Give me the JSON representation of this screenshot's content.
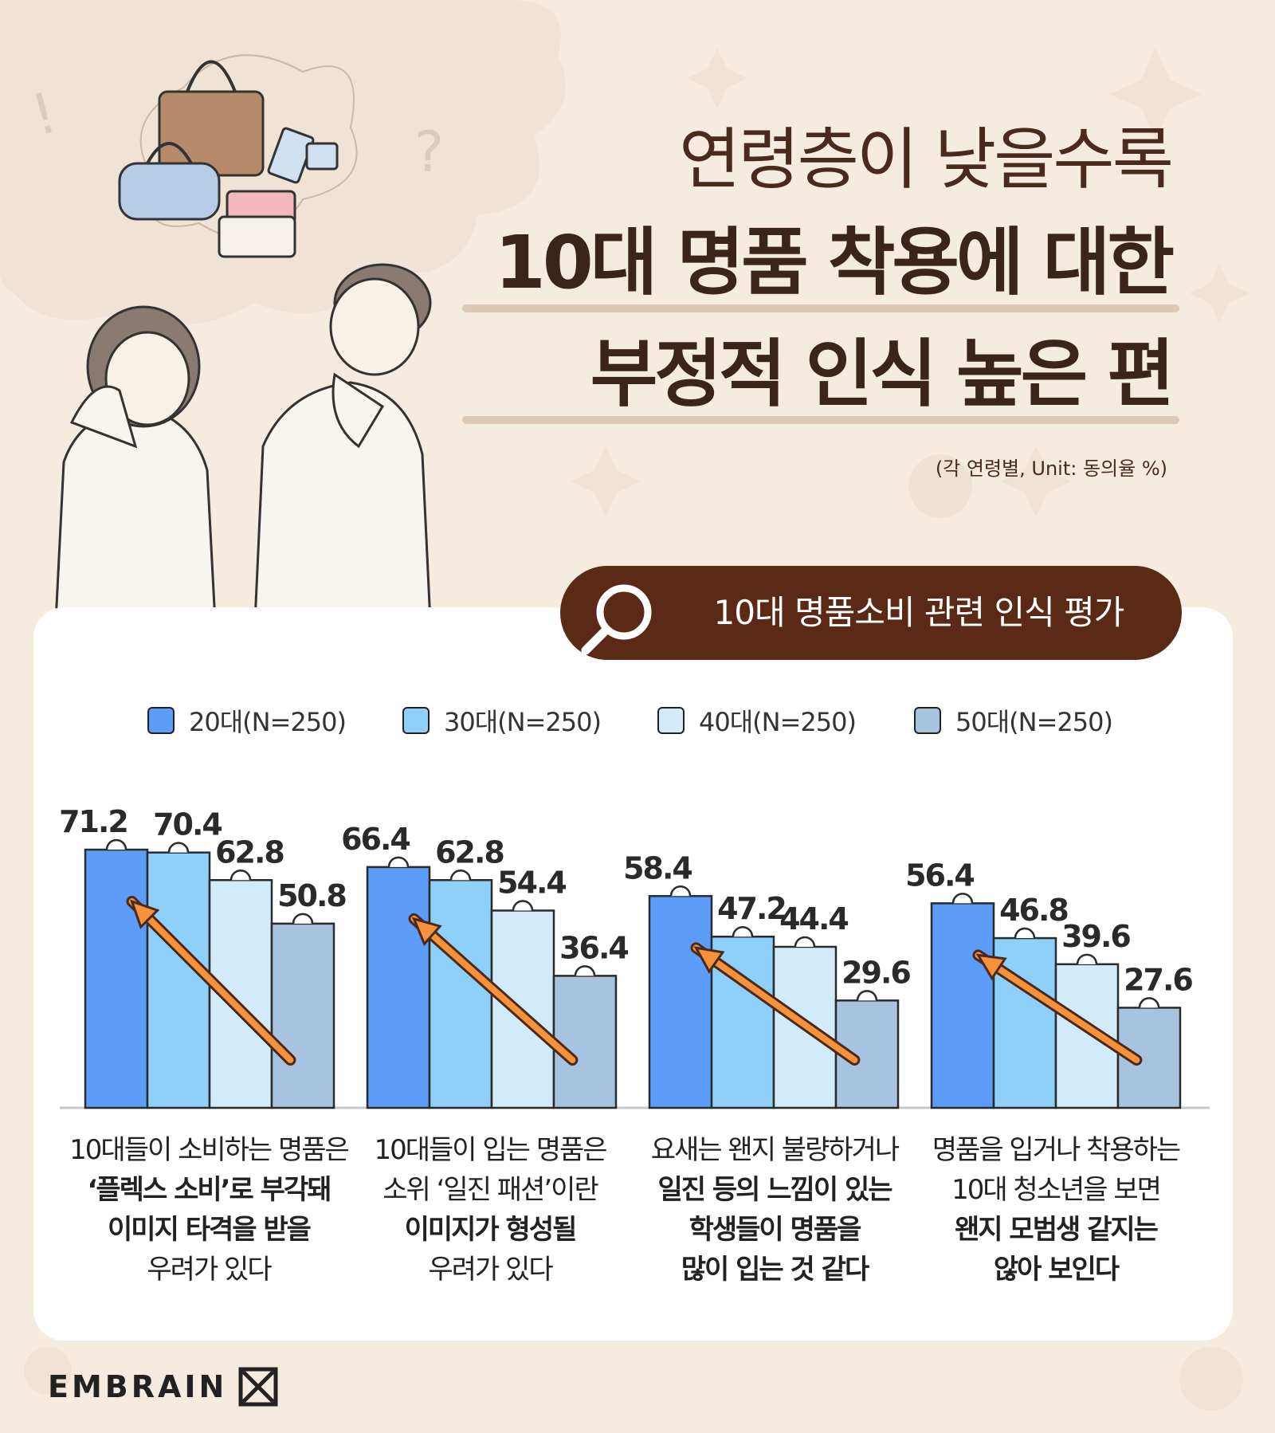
{
  "title": {
    "line1": "연령층이 낮을수록",
    "line2": "10대 명품 착용에 대한",
    "line3": "부정적 인식 높은 편"
  },
  "subtitle": "(각 연령별, Unit: 동의율 %)",
  "section_label": "10대 명품소비 관련 인식 평가",
  "brand": "EMBRAIN",
  "colors": {
    "bg": "#f5ebdf",
    "brown": "#5a2a17",
    "arrow": "#f7923a",
    "s20": "#5b9df9",
    "s30": "#8fd0fb",
    "s40": "#d2ebfb",
    "s50": "#a7c3e0"
  },
  "chart_data": {
    "type": "bar",
    "title": "10대 명품소비 관련 인식 평가",
    "unit": "동의율 %",
    "categories": [
      [
        "10대들이 소비하는 명품은",
        "‘플렉스 소비’로 부각돼",
        "이미지 타격을 받을",
        "우려가 있다"
      ],
      [
        "10대들이 입는 명품은",
        "소위 ‘일진 패션’이란",
        "이미지가 형성될",
        "우려가 있다"
      ],
      [
        "요새는 왠지 불량하거나",
        "일진 등의 느낌이 있는",
        "학생들이 명품을",
        "많이 입는 것 같다"
      ],
      [
        "명품을 입거나 착용하는",
        "10대 청소년을 보면",
        "왠지 모범생 같지는",
        "않아 보인다"
      ]
    ],
    "series": [
      {
        "name": "20대(N=250)",
        "values": [
          71.2,
          66.4,
          58.4,
          56.4
        ]
      },
      {
        "name": "30대(N=250)",
        "values": [
          70.4,
          62.8,
          47.2,
          46.8
        ]
      },
      {
        "name": "40대(N=250)",
        "values": [
          62.8,
          54.4,
          44.4,
          39.6
        ]
      },
      {
        "name": "50대(N=250)",
        "values": [
          50.8,
          36.4,
          29.6,
          27.6
        ]
      }
    ],
    "ylim": [
      0,
      80
    ],
    "legend_position": "top",
    "grid": false
  }
}
